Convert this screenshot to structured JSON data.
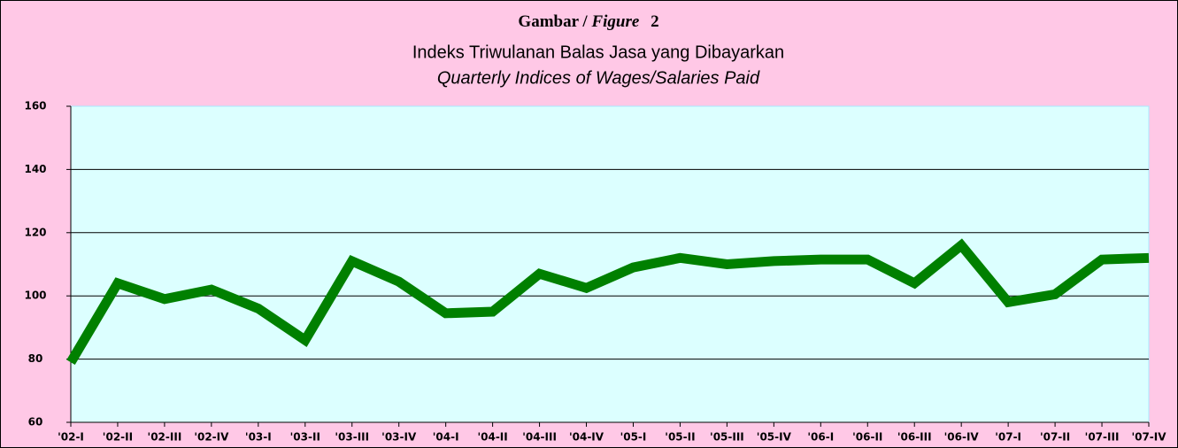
{
  "chart_data": {
    "type": "line",
    "title_parts": [
      "Gambar /",
      "Figure",
      "2"
    ],
    "subtitle": "Indeks Triwulanan Balas Jasa yang Dibayarkan",
    "subtitle_en": "Quarterly Indices of Wages/Salaries Paid",
    "categories": [
      "'02-I",
      "'02-II",
      "'02-III",
      "'02-IV",
      "'03-I",
      "'03-II",
      "'03-III",
      "'03-IV",
      "'04-I",
      "'04-II",
      "'04-III",
      "'04-IV",
      "'05-I",
      "'05-II",
      "'05-III",
      "'05-IV",
      "'06-I",
      "'06-II",
      "'06-III",
      "'06-IV",
      "'07-I",
      "'07-II",
      "'07-III",
      "'07-IV"
    ],
    "series": [
      {
        "color": "#008000",
        "values": [
          79,
          104,
          99,
          102,
          96,
          86,
          111,
          104.5,
          94.5,
          95,
          107,
          102.5,
          109,
          112,
          110,
          111,
          111.5,
          111.5,
          104,
          116,
          98,
          100.5,
          111.5,
          112
        ]
      }
    ],
    "ylim": [
      60,
      160
    ],
    "yticks": [
      60,
      80,
      100,
      120,
      140,
      160
    ],
    "grid": true
  }
}
